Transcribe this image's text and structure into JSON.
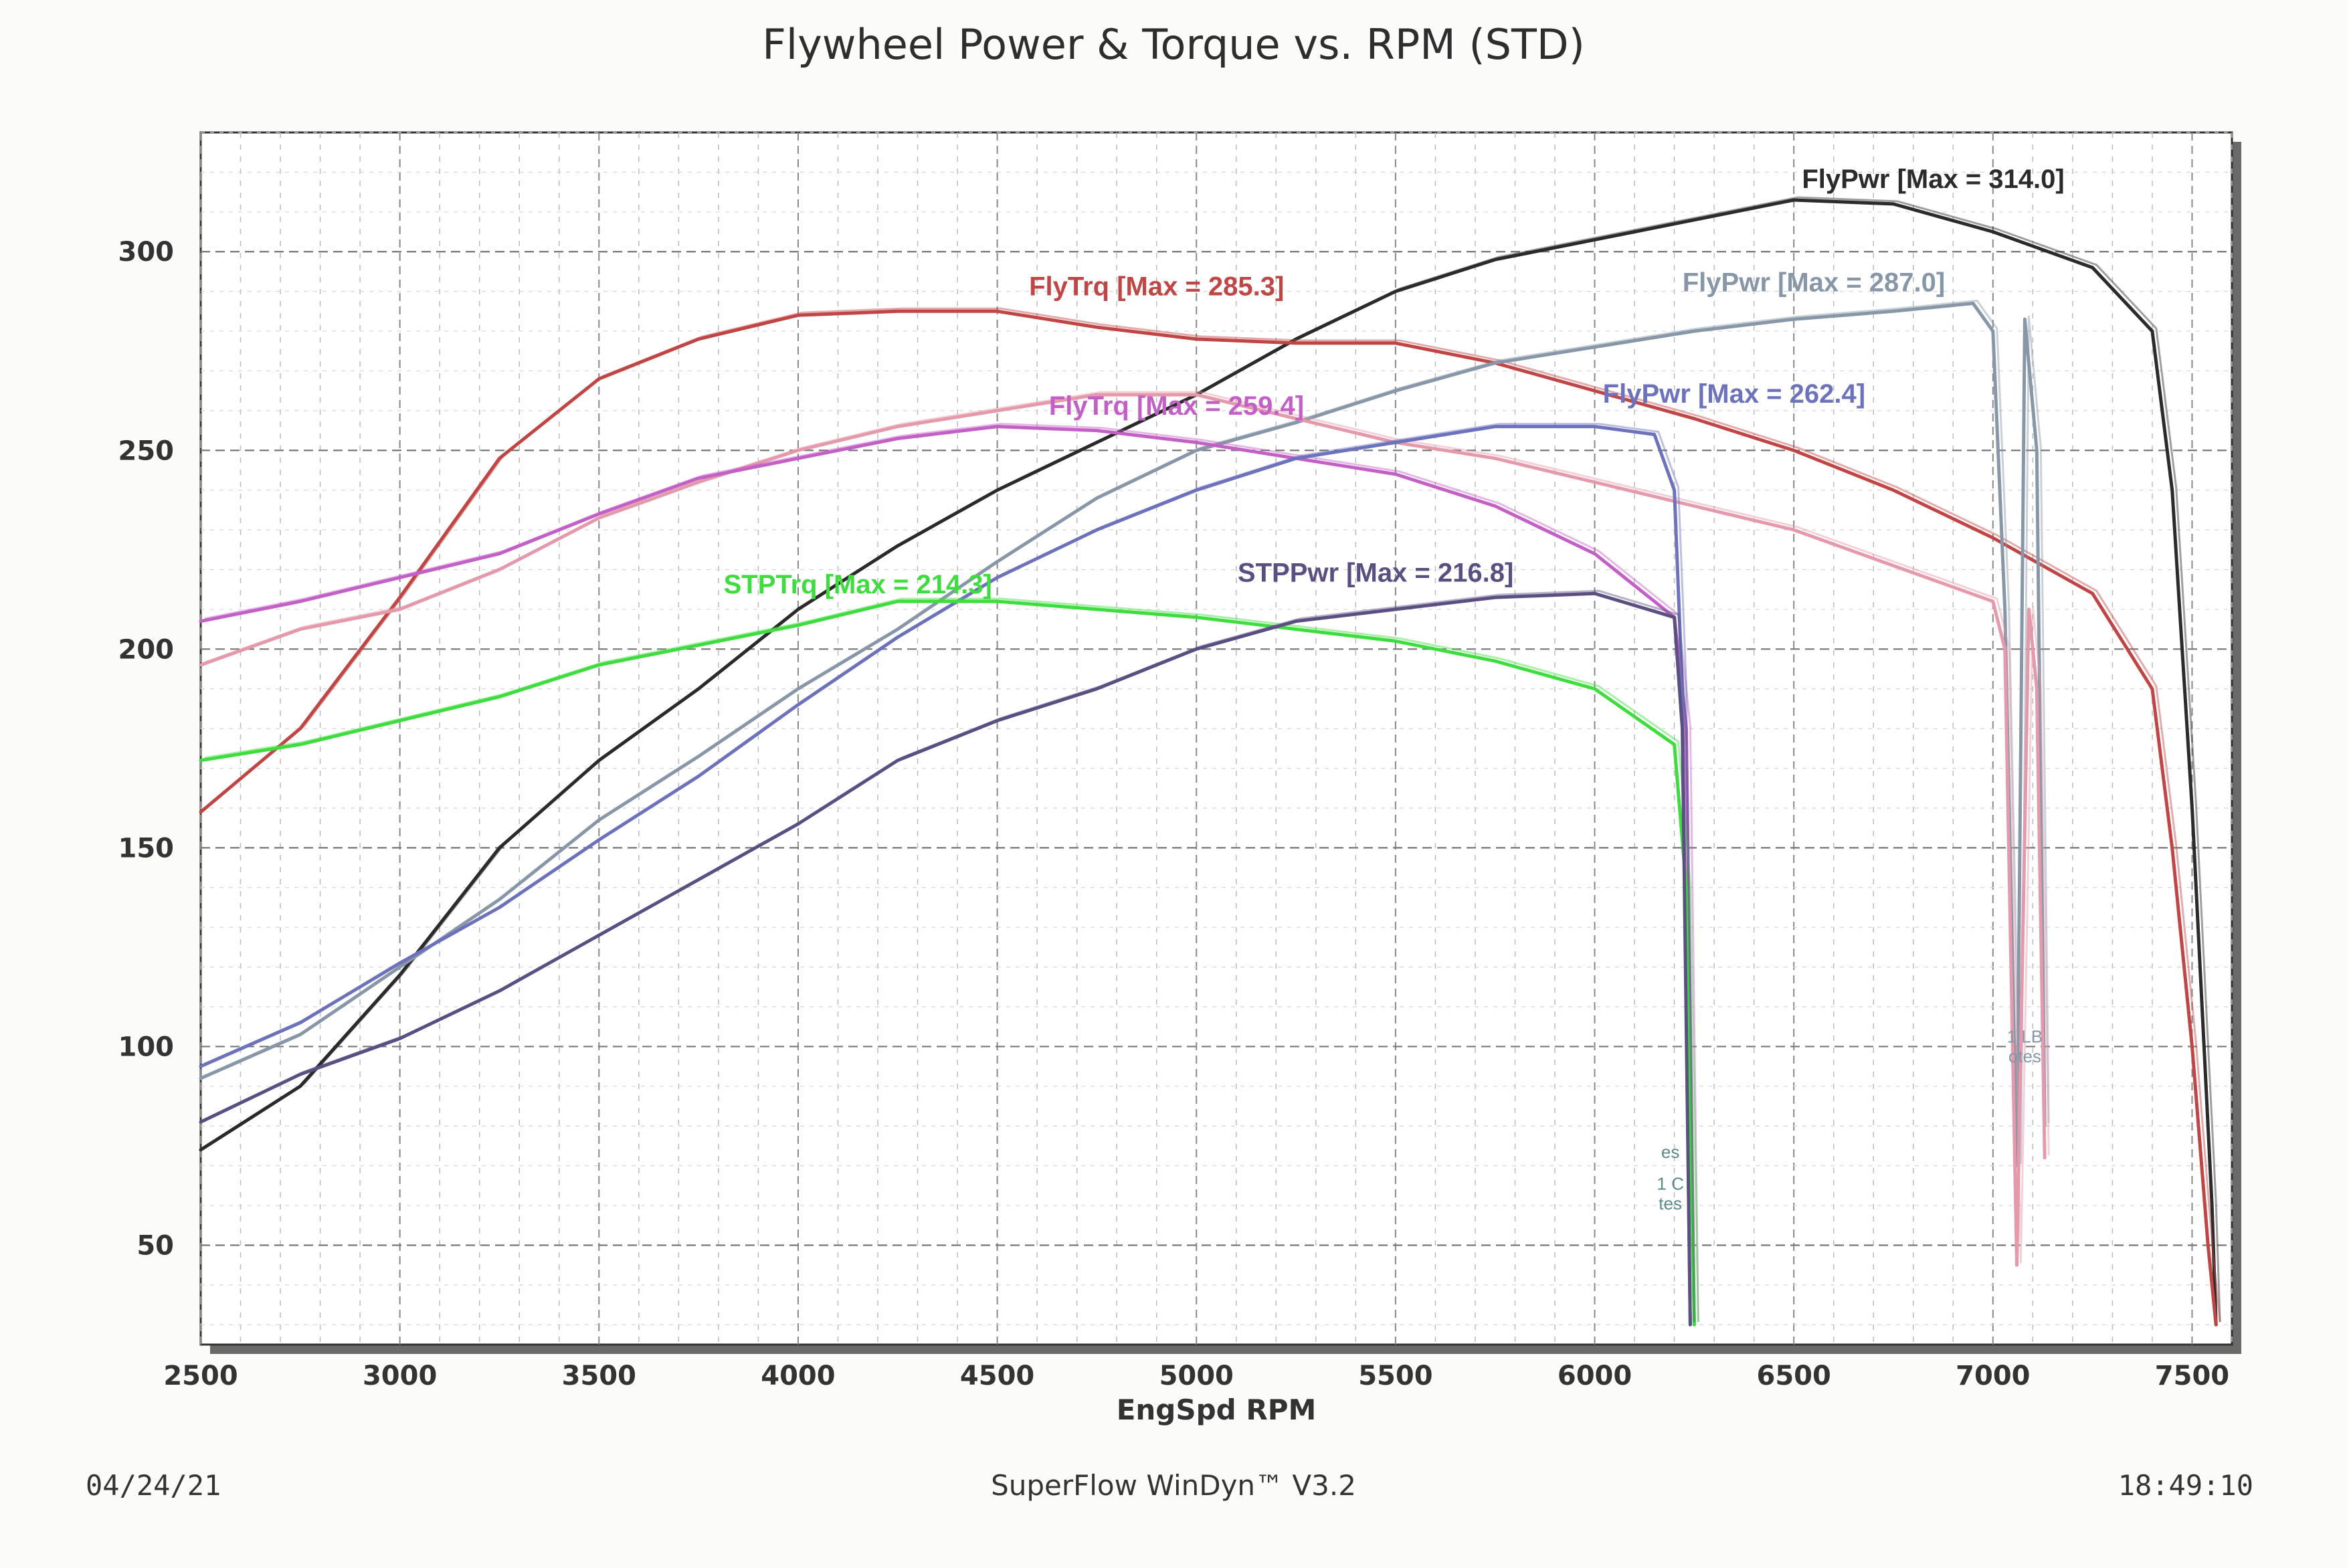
{
  "page": {
    "title": "Flywheel Power & Torque vs. RPM (STD)",
    "date": "04/24/21",
    "software": "SuperFlow WinDyn™ V3.2",
    "time": "18:49:10"
  },
  "chart_data": {
    "type": "line",
    "title": "Flywheel Power & Torque vs. RPM (STD)",
    "xlabel": "EngSpd RPM",
    "ylabel": "",
    "xlim": [
      2500,
      7600
    ],
    "ylim": [
      25,
      330
    ],
    "x_ticks": [
      2500,
      3000,
      3500,
      4000,
      4500,
      5000,
      5500,
      6000,
      6500,
      7000,
      7500
    ],
    "y_ticks": [
      50,
      100,
      150,
      200,
      250,
      300
    ],
    "grid": true,
    "series": [
      {
        "name": "FlyPwr [Max = 314.0]",
        "color": "#2b2b2b",
        "points": [
          [
            2500,
            74
          ],
          [
            2750,
            90
          ],
          [
            3000,
            118
          ],
          [
            3250,
            150
          ],
          [
            3500,
            172
          ],
          [
            3750,
            190
          ],
          [
            4000,
            210
          ],
          [
            4250,
            226
          ],
          [
            4500,
            240
          ],
          [
            4750,
            252
          ],
          [
            5000,
            264
          ],
          [
            5250,
            278
          ],
          [
            5500,
            290
          ],
          [
            5750,
            298
          ],
          [
            6000,
            303
          ],
          [
            6250,
            308
          ],
          [
            6500,
            313
          ],
          [
            6750,
            312
          ],
          [
            7000,
            305
          ],
          [
            7250,
            296
          ],
          [
            7400,
            280
          ],
          [
            7450,
            240
          ],
          [
            7500,
            160
          ],
          [
            7550,
            60
          ],
          [
            7560,
            30
          ]
        ]
      },
      {
        "name": "FlyTrq [Max = 285.3]",
        "color": "#c04545",
        "points": [
          [
            2500,
            159
          ],
          [
            2750,
            180
          ],
          [
            3000,
            213
          ],
          [
            3250,
            248
          ],
          [
            3500,
            268
          ],
          [
            3750,
            278
          ],
          [
            4000,
            284
          ],
          [
            4250,
            285
          ],
          [
            4500,
            285
          ],
          [
            4750,
            281
          ],
          [
            5000,
            278
          ],
          [
            5250,
            277
          ],
          [
            5500,
            277
          ],
          [
            5750,
            272
          ],
          [
            6000,
            265
          ],
          [
            6250,
            258
          ],
          [
            6500,
            250
          ],
          [
            6750,
            240
          ],
          [
            7000,
            228
          ],
          [
            7250,
            214
          ],
          [
            7400,
            190
          ],
          [
            7450,
            150
          ],
          [
            7500,
            100
          ],
          [
            7540,
            50
          ],
          [
            7560,
            30
          ]
        ]
      },
      {
        "name": "FlyPwr [Max = 287.0]",
        "color": "#8797a8",
        "points": [
          [
            2500,
            92
          ],
          [
            2750,
            103
          ],
          [
            3000,
            120
          ],
          [
            3250,
            137
          ],
          [
            3500,
            157
          ],
          [
            3750,
            173
          ],
          [
            4000,
            190
          ],
          [
            4250,
            205
          ],
          [
            4500,
            222
          ],
          [
            4750,
            238
          ],
          [
            5000,
            250
          ],
          [
            5250,
            257
          ],
          [
            5500,
            265
          ],
          [
            5750,
            272
          ],
          [
            6000,
            276
          ],
          [
            6250,
            280
          ],
          [
            6500,
            283
          ],
          [
            6750,
            285
          ],
          [
            6950,
            287
          ],
          [
            7000,
            280
          ],
          [
            7030,
            210
          ],
          [
            7060,
            70
          ],
          [
            7080,
            283
          ],
          [
            7110,
            250
          ],
          [
            7130,
            80
          ]
        ]
      },
      {
        "name": "FlyTrq [Max = 259.4]",
        "color": "#e49aab",
        "points": [
          [
            2500,
            196
          ],
          [
            2750,
            205
          ],
          [
            3000,
            210
          ],
          [
            3250,
            220
          ],
          [
            3500,
            233
          ],
          [
            3750,
            242
          ],
          [
            4000,
            250
          ],
          [
            4250,
            256
          ],
          [
            4500,
            260
          ],
          [
            4750,
            264
          ],
          [
            5000,
            264
          ],
          [
            5250,
            258
          ],
          [
            5500,
            252
          ],
          [
            5750,
            248
          ],
          [
            6000,
            242
          ],
          [
            6250,
            236
          ],
          [
            6500,
            230
          ],
          [
            6750,
            221
          ],
          [
            7000,
            212
          ],
          [
            7030,
            200
          ],
          [
            7060,
            45
          ],
          [
            7090,
            210
          ],
          [
            7110,
            190
          ],
          [
            7130,
            72
          ]
        ]
      },
      {
        "name": "FlyTrq [Max = 259.4]",
        "color": "#c360c6",
        "points": [
          [
            2500,
            207
          ],
          [
            2750,
            212
          ],
          [
            3000,
            218
          ],
          [
            3250,
            224
          ],
          [
            3500,
            234
          ],
          [
            3750,
            243
          ],
          [
            4000,
            248
          ],
          [
            4250,
            253
          ],
          [
            4500,
            256
          ],
          [
            4750,
            255
          ],
          [
            5000,
            252
          ],
          [
            5250,
            248
          ],
          [
            5500,
            244
          ],
          [
            5750,
            236
          ],
          [
            6000,
            224
          ],
          [
            6200,
            208
          ],
          [
            6230,
            180
          ],
          [
            6250,
            30
          ]
        ]
      },
      {
        "name": "FlyPwr [Max = 262.4]",
        "color": "#6d72bc",
        "points": [
          [
            2500,
            95
          ],
          [
            2750,
            106
          ],
          [
            3000,
            121
          ],
          [
            3250,
            135
          ],
          [
            3500,
            152
          ],
          [
            3750,
            168
          ],
          [
            4000,
            186
          ],
          [
            4250,
            203
          ],
          [
            4500,
            218
          ],
          [
            4750,
            230
          ],
          [
            5000,
            240
          ],
          [
            5250,
            248
          ],
          [
            5500,
            252
          ],
          [
            5750,
            256
          ],
          [
            6000,
            256
          ],
          [
            6150,
            254
          ],
          [
            6200,
            240
          ],
          [
            6220,
            190
          ],
          [
            6240,
            30
          ]
        ]
      },
      {
        "name": "STPTrq [Max = 214.3]",
        "color": "#3fdc3f",
        "points": [
          [
            2500,
            172
          ],
          [
            2750,
            176
          ],
          [
            3000,
            182
          ],
          [
            3250,
            188
          ],
          [
            3500,
            196
          ],
          [
            3750,
            201
          ],
          [
            4000,
            206
          ],
          [
            4250,
            212
          ],
          [
            4500,
            212
          ],
          [
            4750,
            210
          ],
          [
            5000,
            208
          ],
          [
            5250,
            205
          ],
          [
            5500,
            202
          ],
          [
            5750,
            197
          ],
          [
            6000,
            190
          ],
          [
            6200,
            176
          ],
          [
            6230,
            140
          ],
          [
            6250,
            30
          ]
        ]
      },
      {
        "name": "STPPwr [Max = 216.8]",
        "color": "#5b4f82",
        "points": [
          [
            2500,
            81
          ],
          [
            2750,
            93
          ],
          [
            3000,
            102
          ],
          [
            3250,
            114
          ],
          [
            3500,
            128
          ],
          [
            3750,
            142
          ],
          [
            4000,
            156
          ],
          [
            4250,
            172
          ],
          [
            4500,
            182
          ],
          [
            4750,
            190
          ],
          [
            5000,
            200
          ],
          [
            5250,
            207
          ],
          [
            5500,
            210
          ],
          [
            5750,
            213
          ],
          [
            6000,
            214
          ],
          [
            6200,
            208
          ],
          [
            6220,
            180
          ],
          [
            6240,
            30
          ]
        ]
      }
    ],
    "labels": [
      {
        "text": "FlyPwr [Max = 314.0]",
        "x": 6850,
        "y": 316,
        "color": "#2b2b2b"
      },
      {
        "text": "FlyTrq [Max = 285.3]",
        "x": 4900,
        "y": 289,
        "color": "#c04545"
      },
      {
        "text": "FlyPwr [Max = 287.0]",
        "x": 6550,
        "y": 290,
        "color": "#8797a8"
      },
      {
        "text": "FlyTrq [Max = 259.4]",
        "x": 4950,
        "y": 259,
        "color": "#c360c6"
      },
      {
        "text": "FlyPwr [Max = 262.4]",
        "x": 6350,
        "y": 262,
        "color": "#6d72bc"
      },
      {
        "text": "STPTrq [Max = 214.3]",
        "x": 4150,
        "y": 214,
        "color": "#3fdc3f"
      },
      {
        "text": "STPPwr [Max = 216.8]",
        "x": 5450,
        "y": 217,
        "color": "#5b4f82"
      }
    ],
    "notes": [
      {
        "text": "1 LB",
        "x": 7080,
        "y": 101,
        "color": "#8797a8"
      },
      {
        "text": "otes",
        "x": 7080,
        "y": 96,
        "color": "#8797a8"
      },
      {
        "text": "es",
        "x": 6190,
        "y": 72,
        "color": "#5b8a8a"
      },
      {
        "text": "1 C",
        "x": 6190,
        "y": 64,
        "color": "#5b8a8a"
      },
      {
        "text": "tes",
        "x": 6190,
        "y": 59,
        "color": "#5b8a8a"
      }
    ]
  }
}
